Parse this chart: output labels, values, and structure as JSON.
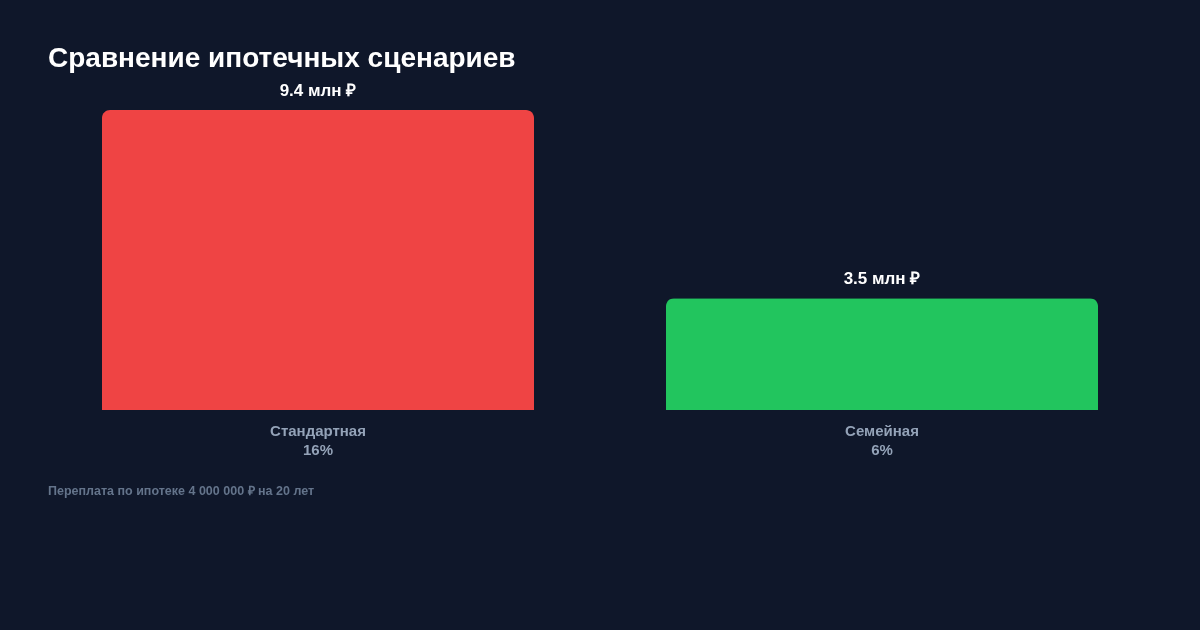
{
  "chart_data": {
    "type": "bar",
    "title": "Сравнение ипотечных сценариев",
    "categories": [
      "Стандартная\n16%",
      "Семейная\n6%"
    ],
    "values": [
      9.4,
      3.5
    ],
    "colors": [
      "#ef4444",
      "#22c55e"
    ],
    "value_labels": [
      "9.4 млн ₽",
      "3.5 млн ₽"
    ],
    "annotations": [
      "Переплата по ипотеке 4 000 000 ₽ на 20 лет"
    ]
  }
}
